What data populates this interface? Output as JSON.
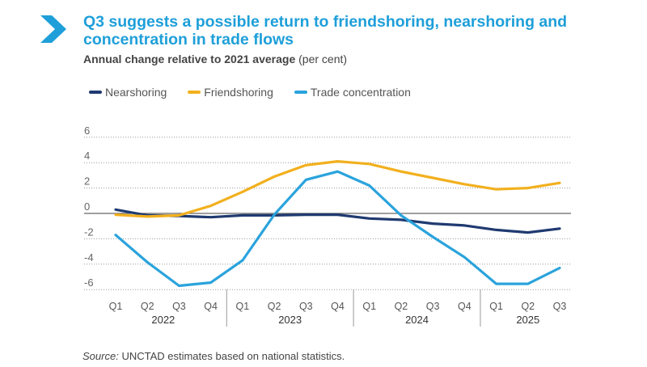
{
  "header": {
    "title": "Q3 suggests a possible return to friendshoring, nearshoring and concentration in trade flows",
    "subtitle": "Annual change relative to 2021 average",
    "subtitle_unit": "(per cent)",
    "icon": "chevron-right-icon",
    "accent_color": "#1e9fd9"
  },
  "source": {
    "label": "Source:",
    "text": "UNCTAD estimates based on national statistics."
  },
  "chart_data": {
    "type": "line",
    "title": "Q3 suggests a possible return to friendshoring, nearshoring and concentration in trade flows",
    "subtitle": "Annual change relative to 2021 average (per cent)",
    "ylim": [
      -6,
      6
    ],
    "yticks": [
      6,
      4,
      2,
      0,
      -2,
      -4,
      -6
    ],
    "grid": true,
    "legend": "top-left",
    "quarters": [
      "Q1",
      "Q2",
      "Q3",
      "Q4",
      "Q1",
      "Q2",
      "Q3",
      "Q4",
      "Q1",
      "Q2",
      "Q3",
      "Q4",
      "Q1",
      "Q2",
      "Q3"
    ],
    "years": [
      {
        "label": "2022",
        "span": 4
      },
      {
        "label": "2023",
        "span": 4
      },
      {
        "label": "2024",
        "span": 4
      },
      {
        "label": "2025",
        "span": 3
      }
    ],
    "series": [
      {
        "name": "Nearshoring",
        "color": "#1f3a70",
        "values": [
          0.3,
          -0.15,
          -0.2,
          -0.3,
          -0.15,
          -0.15,
          -0.1,
          -0.1,
          -0.4,
          -0.5,
          -0.8,
          -0.95,
          -1.3,
          -1.5,
          -1.2
        ]
      },
      {
        "name": "Friendshoring",
        "color": "#f2b01e",
        "values": [
          -0.1,
          -0.25,
          -0.15,
          0.6,
          1.7,
          2.9,
          3.8,
          4.1,
          3.9,
          3.3,
          2.8,
          2.3,
          1.9,
          2.0,
          2.4
        ]
      },
      {
        "name": "Trade concentration",
        "color": "#2aa3dc",
        "values": [
          -1.7,
          -3.85,
          -5.7,
          -5.45,
          -3.7,
          -0.1,
          2.65,
          3.3,
          2.2,
          -0.15,
          -1.85,
          -3.45,
          -5.55,
          -5.55,
          -4.3
        ]
      }
    ]
  }
}
